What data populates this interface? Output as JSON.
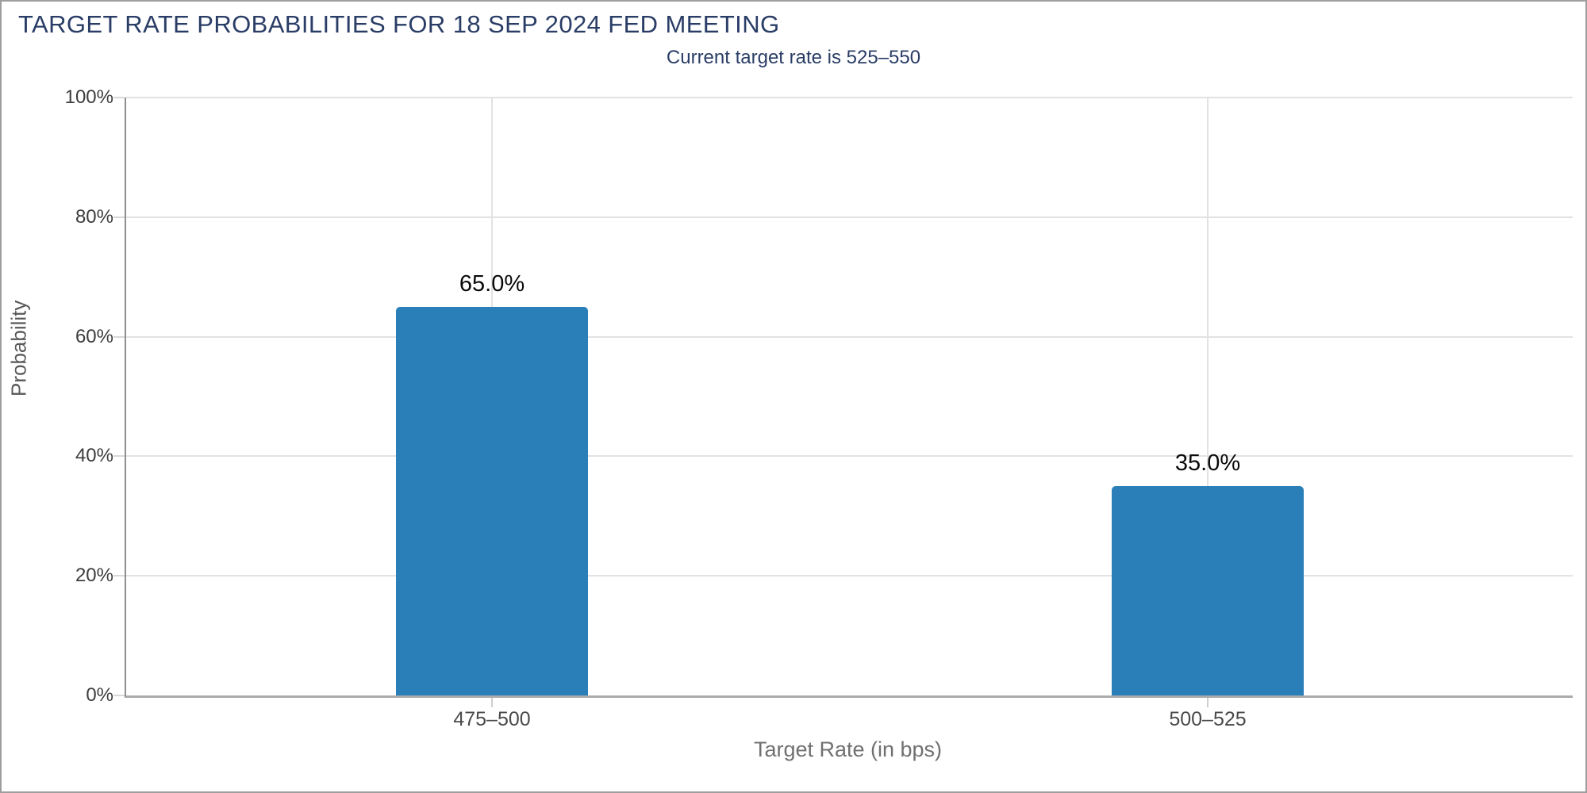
{
  "header": {
    "title": "TARGET RATE PROBABILITIES FOR 18 SEP 2024 FED MEETING",
    "subtitle": "Current target rate is 525–550"
  },
  "chart_data": {
    "type": "bar",
    "title": "TARGET RATE PROBABILITIES FOR 18 SEP 2024 FED MEETING",
    "subtitle": "Current target rate is 525–550",
    "categories": [
      "475–500",
      "500–525"
    ],
    "values": [
      65.0,
      35.0
    ],
    "value_labels": [
      "65.0%",
      "35.0%"
    ],
    "xlabel": "Target Rate (in bps)",
    "ylabel": "Probability",
    "ylim": [
      0,
      100
    ],
    "yticks": [
      0,
      20,
      40,
      60,
      80,
      100
    ],
    "ytick_labels": [
      "0%",
      "20%",
      "40%",
      "60%",
      "80%",
      "100%"
    ],
    "legend": "none",
    "grid": {
      "horizontal": "at each y tick",
      "vertical": "at each category center"
    }
  },
  "colors": {
    "bar": "#2a7fb8",
    "heading_text": "#2a3d66",
    "gridline": "#e2e2e2",
    "axis_line": "#8f8f8f",
    "value_label_text": "#0a0a0a",
    "axis_title_text": "#707070",
    "background": "#ffffff",
    "page_border": "#9e9e9e"
  }
}
